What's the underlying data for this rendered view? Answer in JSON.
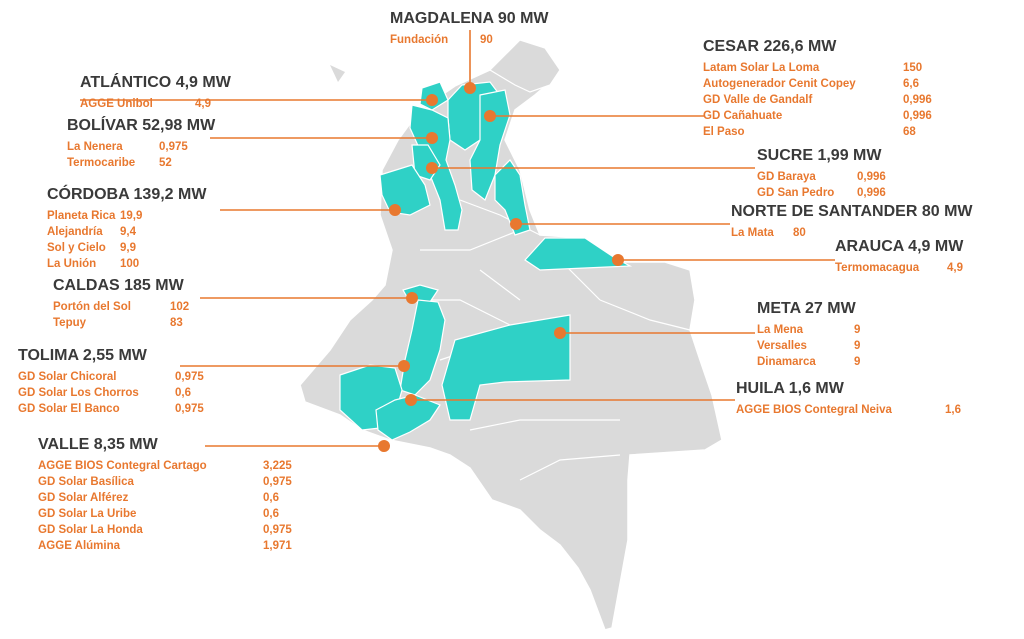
{
  "departments": [
    {
      "id": "magdalena",
      "name": "MAGDALENA 90 MW",
      "plants": [
        {
          "name": "Fundación",
          "value": "90"
        }
      ]
    },
    {
      "id": "cesar",
      "name": "CESAR 226,6 MW",
      "plants": [
        {
          "name": "Latam Solar La Loma",
          "value": "150"
        },
        {
          "name": "Autogenerador Cenit Copey",
          "value": "6,6"
        },
        {
          "name": "GD Valle de Gandalf",
          "value": "0,996"
        },
        {
          "name": "GD Cañahuate",
          "value": "0,996"
        },
        {
          "name": "El Paso",
          "value": "68"
        }
      ]
    },
    {
      "id": "atlantico",
      "name": "ATLÁNTICO 4,9 MW",
      "plants": [
        {
          "name": "AGGE Unibol",
          "value": "4,9"
        }
      ]
    },
    {
      "id": "bolivar",
      "name": "BOLÍVAR 52,98 MW",
      "plants": [
        {
          "name": "La Nenera",
          "value": "0,975"
        },
        {
          "name": "Termocaribe",
          "value": "52"
        }
      ]
    },
    {
      "id": "sucre",
      "name": "SUCRE 1,99 MW",
      "plants": [
        {
          "name": "GD Baraya",
          "value": "0,996"
        },
        {
          "name": "GD San Pedro",
          "value": "0,996"
        }
      ]
    },
    {
      "id": "cordoba",
      "name": "CÓRDOBA 139,2 MW",
      "plants": [
        {
          "name": "Planeta Rica",
          "value": "19,9"
        },
        {
          "name": "Alejandría",
          "value": "9,4"
        },
        {
          "name": "Sol y Cielo",
          "value": "9,9"
        },
        {
          "name": "La Unión",
          "value": "100"
        }
      ]
    },
    {
      "id": "norte-de-santander",
      "name": "NORTE DE SANTANDER 80 MW",
      "plants": [
        {
          "name": "La Mata",
          "value": "80"
        }
      ]
    },
    {
      "id": "arauca",
      "name": "ARAUCA 4,9 MW",
      "plants": [
        {
          "name": "Termomacagua",
          "value": "4,9"
        }
      ]
    },
    {
      "id": "caldas",
      "name": "CALDAS 185 MW",
      "plants": [
        {
          "name": "Portón del Sol",
          "value": "102"
        },
        {
          "name": "Tepuy",
          "value": "83"
        }
      ]
    },
    {
      "id": "meta",
      "name": "META 27 MW",
      "plants": [
        {
          "name": "La Mena",
          "value": "9"
        },
        {
          "name": "Versalles",
          "value": "9"
        },
        {
          "name": "Dinamarca",
          "value": "9"
        }
      ]
    },
    {
      "id": "tolima",
      "name": "TOLIMA 2,55 MW",
      "plants": [
        {
          "name": "GD Solar Chicoral",
          "value": "0,975"
        },
        {
          "name": "GD Solar Los Chorros",
          "value": "0,6"
        },
        {
          "name": "GD Solar El Banco",
          "value": "0,975"
        }
      ]
    },
    {
      "id": "huila",
      "name": "HUILA 1,6 MW",
      "plants": [
        {
          "name": "AGGE BIOS Contegral Neiva",
          "value": "1,6"
        }
      ]
    },
    {
      "id": "valle",
      "name": "VALLE 8,35 MW",
      "plants": [
        {
          "name": "AGGE BIOS Contegral Cartago",
          "value": "3,225"
        },
        {
          "name": "GD Solar Basílica",
          "value": "0,975"
        },
        {
          "name": "GD Solar Alférez",
          "value": "0,6"
        },
        {
          "name": "GD Solar La Uribe",
          "value": "0,6"
        },
        {
          "name": "GD Solar La Honda",
          "value": "0,975"
        },
        {
          "name": "AGGE Alúmina",
          "value": "1,971"
        }
      ]
    }
  ],
  "colors": {
    "highlight": "#2fd1c6",
    "base": "#dadada",
    "marker": "#e8782f",
    "title": "#3a3a3a",
    "label": "#e8782f"
  }
}
